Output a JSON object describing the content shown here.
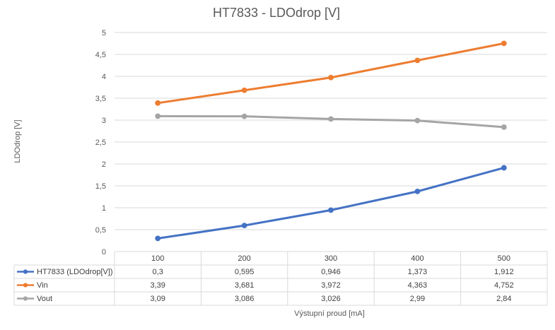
{
  "chart_data": {
    "type": "line",
    "title": "HT7833 - LDOdrop [V]",
    "xlabel": "Výstupní proud [mA]",
    "ylabel": "LDOdrop [V]",
    "categories": [
      "100",
      "200",
      "300",
      "400",
      "500"
    ],
    "ylim": [
      0,
      5
    ],
    "yticks": [
      0,
      0.5,
      1,
      1.5,
      2,
      2.5,
      3,
      3.5,
      4,
      4.5,
      5
    ],
    "ytick_labels": [
      "0",
      "0,5",
      "1",
      "1,5",
      "2",
      "2,5",
      "3",
      "3,5",
      "4",
      "4,5",
      "5"
    ],
    "grid": true,
    "legend": "data-table",
    "series": [
      {
        "name": "HT7833 (LDOdrop[V])",
        "color": "#4472c4",
        "values": [
          0.3,
          0.595,
          0.946,
          1.373,
          1.912
        ],
        "labels": [
          "0,3",
          "0,595",
          "0,946",
          "1,373",
          "1,912"
        ]
      },
      {
        "name": "Vin",
        "color": "#ed7d31",
        "values": [
          3.39,
          3.681,
          3.972,
          4.363,
          4.752
        ],
        "labels": [
          "3,39",
          "3,681",
          "3,972",
          "4,363",
          "4,752"
        ]
      },
      {
        "name": "Vout",
        "color": "#a5a5a5",
        "values": [
          3.09,
          3.086,
          3.026,
          2.99,
          2.84
        ],
        "labels": [
          "3,09",
          "3,086",
          "3,026",
          "2,99",
          "2,84"
        ]
      }
    ]
  }
}
